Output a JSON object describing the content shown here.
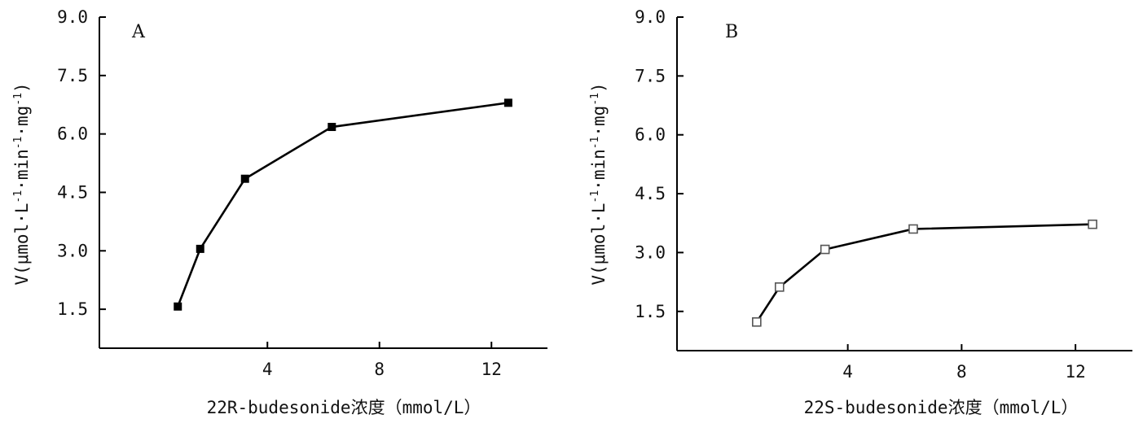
{
  "chart_data": [
    {
      "type": "line",
      "panel_label": "A",
      "xlabel": "22R-budesonide浓度（mmol/L）",
      "ylabel_base": "V(μmol·L",
      "ylabel_sup1": "-1",
      "ylabel_mid": "·min",
      "ylabel_sup2": "-1",
      "ylabel_mid2": "·mg",
      "ylabel_sup3": "-1",
      "ylabel_end": ")",
      "xlim": [
        -2,
        14
      ],
      "ylim": [
        0.5,
        9.0
      ],
      "xticks": [
        4,
        8,
        12
      ],
      "xtick_labels": [
        "4",
        "8",
        "12"
      ],
      "yticks": [
        1.5,
        3.0,
        4.5,
        6.0,
        7.5,
        9.0
      ],
      "ytick_labels": [
        "1.5",
        "3.0",
        "4.5",
        "6.0",
        "7.5",
        "9.0"
      ],
      "marker": "filled-square",
      "series": [
        {
          "x": [
            0.8,
            1.6,
            3.2,
            6.3,
            12.6
          ],
          "y": [
            1.57,
            3.05,
            4.85,
            6.18,
            6.8
          ]
        }
      ]
    },
    {
      "type": "line",
      "panel_label": "B",
      "xlabel": "22S-budesonide浓度（mmol/L）",
      "ylabel_base": "V(μmol·L",
      "ylabel_sup1": "-1",
      "ylabel_mid": "·min",
      "ylabel_sup2": "-1",
      "ylabel_mid2": "·mg",
      "ylabel_sup3": "-1",
      "ylabel_end": ")",
      "xlim": [
        -2,
        14
      ],
      "ylim": [
        0.5,
        9.0
      ],
      "xticks": [
        4,
        8,
        12
      ],
      "xtick_labels": [
        "4",
        "8",
        "12"
      ],
      "yticks": [
        1.5,
        3.0,
        4.5,
        6.0,
        7.5,
        9.0
      ],
      "ytick_labels": [
        "1.5",
        "3.0",
        "4.5",
        "6.0",
        "7.5",
        "9.0"
      ],
      "marker": "open-square",
      "series": [
        {
          "x": [
            0.8,
            1.6,
            3.2,
            6.3,
            12.6
          ],
          "y": [
            1.23,
            2.12,
            3.08,
            3.6,
            3.72
          ]
        }
      ]
    }
  ]
}
